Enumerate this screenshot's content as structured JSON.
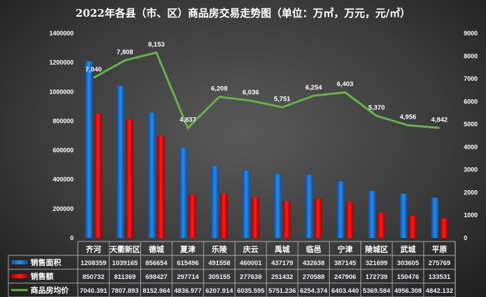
{
  "chart_data": {
    "type": "bar",
    "title": "2022年各县（市、区）商品房交易走势图（单位：万㎡，万元，元/㎡）",
    "categories": [
      "齐河",
      "天衢新区",
      "德城",
      "夏津",
      "乐陵",
      "庆云",
      "禹城",
      "临邑",
      "宁津",
      "陵城区",
      "武城",
      "平原"
    ],
    "left_axis": {
      "ylim": [
        0,
        1400000
      ],
      "ticks": [
        0,
        200000,
        400000,
        600000,
        800000,
        1000000,
        1200000,
        1400000
      ]
    },
    "right_axis": {
      "ylim": [
        0,
        9000
      ],
      "ticks": [
        0,
        1000,
        2000,
        3000,
        4000,
        5000,
        6000,
        7000,
        8000,
        9000
      ]
    },
    "series": [
      {
        "name": "销售面积",
        "type": "bar",
        "axis": "left",
        "color": "#1a6fd0",
        "values": [
          1208359,
          1039165,
          856654,
          615496,
          491558,
          460001,
          437179,
          432638,
          387145,
          321699,
          303605,
          275769
        ]
      },
      {
        "name": "销售额",
        "type": "bar",
        "axis": "left",
        "color": "#e00000",
        "values": [
          850732,
          811369,
          698427,
          297714,
          305155,
          277638,
          251432,
          270588,
          247906,
          172739,
          150476,
          133531
        ]
      },
      {
        "name": "商品房均价",
        "type": "line",
        "axis": "right",
        "color": "#6ab04c",
        "values": [
          7040.391,
          7807.893,
          8152.964,
          4836.977,
          6207.914,
          6035.595,
          5751.236,
          6254.374,
          6403.44,
          5369.584,
          4956.308,
          4842.132
        ],
        "labels": [
          "7,040",
          "7,808",
          "8,153",
          "4,837",
          "6,208",
          "6,036",
          "5,751",
          "6,254",
          "6,403",
          "5,370",
          "4,956",
          "4,842"
        ]
      }
    ],
    "table_values": [
      [
        "1208359",
        "1039165",
        "856654",
        "615496",
        "491558",
        "460001",
        "437179",
        "432638",
        "387145",
        "321699",
        "303605",
        "275769"
      ],
      [
        "850732",
        "811369",
        "698427",
        "297714",
        "305155",
        "277638",
        "251432",
        "270588",
        "247906",
        "172739",
        "150476",
        "133531"
      ],
      [
        "7040.391",
        "7807.893",
        "8152.964",
        "4836.977",
        "6207.914",
        "6035.595",
        "5751.236",
        "6254.374",
        "6403.440",
        "5369.584",
        "4956.308",
        "4842.132"
      ]
    ],
    "legend": "data-table-bottom",
    "grid": false
  }
}
